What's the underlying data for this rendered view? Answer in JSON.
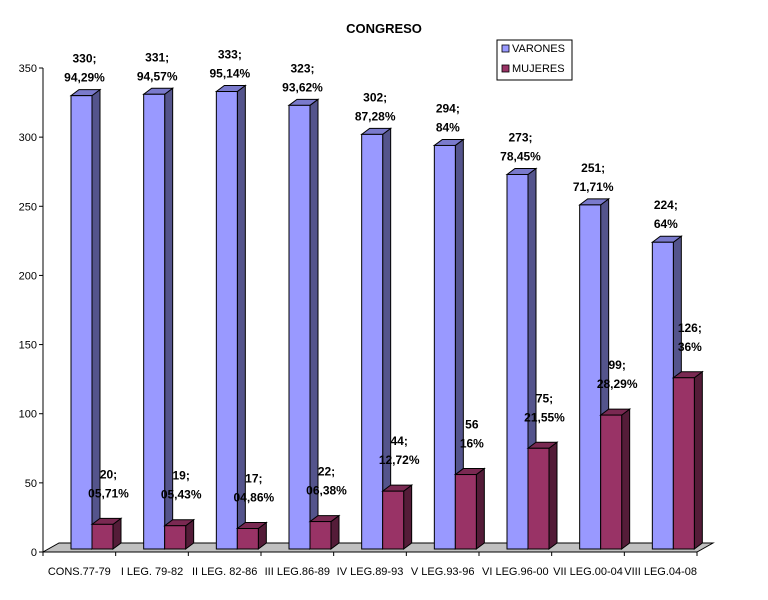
{
  "chart_data": {
    "type": "bar",
    "title": "CONGRESO",
    "categories": [
      "CONS.77-79",
      "I LEG. 79-82",
      "II LEG. 82-86",
      "III LEG.86-89",
      "IV LEG.89-93",
      "V LEG.93-96",
      "VI LEG.96-00",
      "VII LEG.00-04",
      "VIII LEG.04-08"
    ],
    "series": [
      {
        "name": "VARONES",
        "color": "#9999ff",
        "values": [
          330,
          331,
          333,
          323,
          302,
          294,
          273,
          251,
          224
        ],
        "labels": [
          [
            "330;",
            "94,29%"
          ],
          [
            "331;",
            "94,57%"
          ],
          [
            "333;",
            "95,14%"
          ],
          [
            "323;",
            "93,62%"
          ],
          [
            "302;",
            "87,28%"
          ],
          [
            "294;",
            "84%"
          ],
          [
            "273;",
            "78,45%"
          ],
          [
            "251;",
            "71,71%"
          ],
          [
            "224;",
            "64%"
          ]
        ]
      },
      {
        "name": "MUJERES",
        "color": "#993366",
        "values": [
          20,
          19,
          17,
          22,
          44,
          56,
          75,
          99,
          126
        ],
        "labels": [
          [
            "20;",
            "05,71%"
          ],
          [
            "19;",
            "05,43%"
          ],
          [
            "17;",
            "04,86%"
          ],
          [
            "22;",
            "06,38%"
          ],
          [
            "44;",
            "12,72%"
          ],
          [
            "56",
            "16%"
          ],
          [
            "75;",
            "21,55%"
          ],
          [
            "99;",
            "28,29%"
          ],
          [
            "126;",
            "36%"
          ]
        ]
      }
    ],
    "ylim": [
      0,
      350
    ],
    "yticks": [
      0,
      50,
      100,
      150,
      200,
      250,
      300,
      350
    ],
    "legend_position": "top-right"
  }
}
